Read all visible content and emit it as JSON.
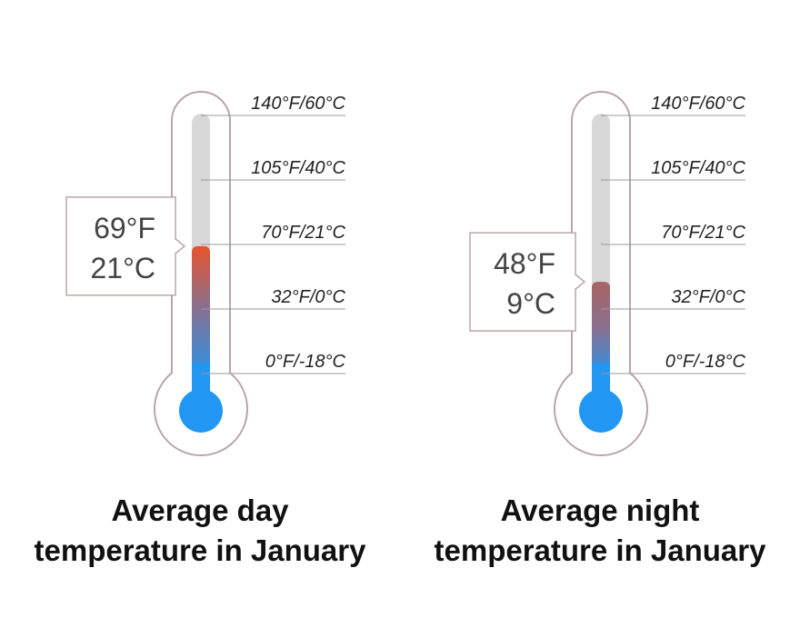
{
  "chart_data": [
    {
      "type": "thermometer",
      "scale_ticks": [
        "140°F/60°C",
        "105°F/40°C",
        "70°F/21°C",
        "32°F/0°C",
        "0°F/-18°C"
      ],
      "value": {
        "fahrenheit": 69,
        "celsius": 21
      },
      "readout": [
        "69°F",
        "21°C"
      ],
      "caption": [
        "Average day",
        "temperature in January"
      ]
    },
    {
      "type": "thermometer",
      "scale_ticks": [
        "140°F/60°C",
        "105°F/40°C",
        "70°F/21°C",
        "32°F/0°C",
        "0°F/-18°C"
      ],
      "value": {
        "fahrenheit": 48,
        "celsius": 9
      },
      "readout": [
        "48°F",
        "9°C"
      ],
      "caption": [
        "Average night",
        "temperature in January"
      ]
    }
  ],
  "colors": {
    "outline": "#b8a6a6",
    "tube": "#d8d8d8",
    "cold": "#2196f3",
    "warm": "#e8542c",
    "grid": "#9a9a9a"
  }
}
